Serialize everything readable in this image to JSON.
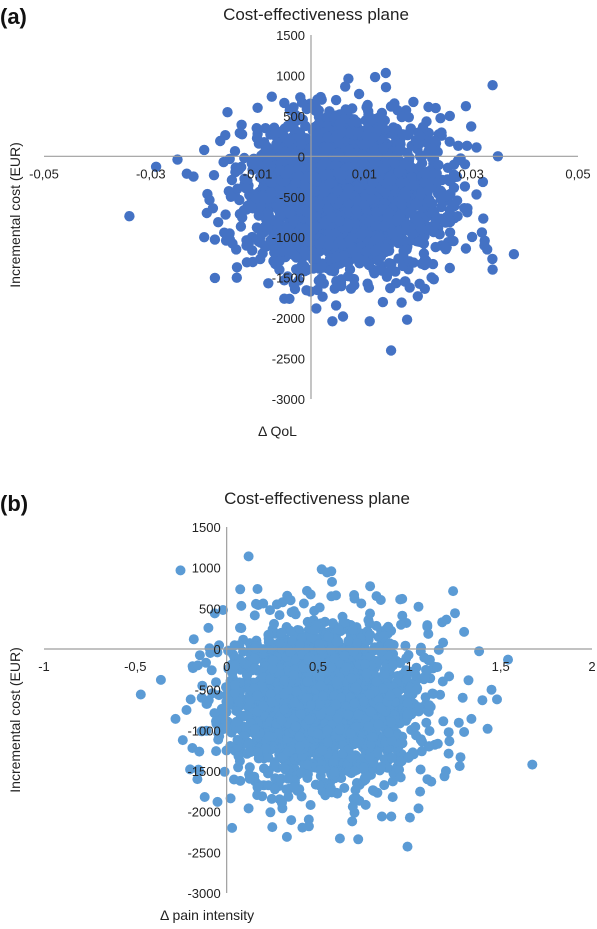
{
  "chart_data": [
    {
      "panel_label": "(a)",
      "type": "scatter",
      "title": "Cost-effectiveness plane",
      "xlabel": "Δ QoL",
      "ylabel": "Incremental cost (EUR)",
      "xlim": [
        -0.05,
        0.05
      ],
      "ylim": [
        -3000,
        1500
      ],
      "x_ticks": [
        "-0,05",
        "-0,03",
        "-0,01",
        "0,01",
        "0,03",
        "0,05"
      ],
      "x_tick_values": [
        -0.05,
        -0.03,
        -0.01,
        0.01,
        0.03,
        0.05
      ],
      "y_ticks": [
        "1500",
        "1000",
        "500",
        "0",
        "-500",
        "-1000",
        "-1500",
        "-2000",
        "-2500",
        "-3000"
      ],
      "y_tick_values": [
        1500,
        1000,
        500,
        0,
        -500,
        -1000,
        -1500,
        -2000,
        -2500,
        -3000
      ],
      "color": "#4472c4",
      "points": [
        [
          -0.034,
          -740
        ],
        [
          -0.029,
          -130
        ],
        [
          -0.025,
          -40
        ],
        [
          -0.022,
          -250
        ],
        [
          -0.019,
          -540
        ],
        [
          -0.016,
          -720
        ],
        [
          -0.015,
          -500
        ],
        [
          -0.02,
          -1000
        ],
        [
          -0.018,
          -1030
        ],
        [
          -0.014,
          -1150
        ],
        [
          -0.012,
          -1310
        ],
        [
          -0.008,
          -1570
        ],
        [
          -0.005,
          -1760
        ],
        [
          -0.003,
          -1640
        ],
        [
          0.001,
          -1880
        ],
        [
          0.004,
          -2040
        ],
        [
          0.006,
          -1980
        ],
        [
          0.011,
          -2040
        ],
        [
          0.015,
          -2400
        ],
        [
          0.018,
          -2020
        ],
        [
          0.02,
          -1730
        ],
        [
          0.023,
          -1520
        ],
        [
          0.026,
          -1380
        ],
        [
          0.029,
          -1140
        ],
        [
          0.032,
          -940
        ],
        [
          0.031,
          -470
        ],
        [
          0.033,
          -1150
        ],
        [
          0.034,
          -1400
        ],
        [
          0.038,
          -1210
        ],
        [
          0.035,
          0
        ],
        [
          0.031,
          110
        ],
        [
          0.029,
          620
        ],
        [
          0.034,
          880
        ],
        [
          0.03,
          370
        ],
        [
          0.026,
          500
        ],
        [
          0.022,
          610
        ],
        [
          0.014,
          1030
        ],
        [
          0.012,
          980
        ],
        [
          0.007,
          960
        ],
        [
          0.002,
          700
        ],
        [
          -0.002,
          730
        ],
        [
          -0.005,
          660
        ],
        [
          -0.01,
          600
        ],
        [
          -0.013,
          390
        ],
        [
          -0.017,
          190
        ],
        [
          -0.02,
          80
        ],
        [
          0.009,
          770
        ],
        [
          -0.006,
          300
        ],
        [
          0.0,
          100
        ],
        [
          0.005,
          -200
        ],
        [
          0.01,
          -600
        ],
        [
          0.015,
          -300
        ],
        [
          0.02,
          -800
        ]
      ]
    },
    {
      "panel_label": "(b)",
      "type": "scatter",
      "title": "Cost-effectiveness plane",
      "xlabel": "Δ pain intensity",
      "ylabel": "Incremental cost (EUR)",
      "xlim": [
        -1,
        2
      ],
      "ylim": [
        -3000,
        1500
      ],
      "x_ticks": [
        "-1",
        "-0,5",
        "0",
        "0,5",
        "1",
        "1,5",
        "2"
      ],
      "x_tick_values": [
        -1,
        -0.5,
        0,
        0.5,
        1,
        1.5,
        2
      ],
      "y_ticks": [
        "1500",
        "1000",
        "500",
        "0",
        "-500",
        "-1000",
        "-1500",
        "-2000",
        "-2500",
        "-3000"
      ],
      "y_tick_values": [
        1500,
        1000,
        500,
        0,
        -500,
        -1000,
        -1500,
        -2000,
        -2500,
        -3000
      ],
      "color": "#5b9bd5",
      "points": [
        [
          -0.47,
          -560
        ],
        [
          -0.36,
          -380
        ],
        [
          -0.28,
          -860
        ],
        [
          -0.24,
          -1120
        ],
        [
          -0.2,
          -1480
        ],
        [
          -0.16,
          -1600
        ],
        [
          -0.22,
          -750
        ],
        [
          -0.12,
          -1820
        ],
        [
          -0.05,
          -1880
        ],
        [
          0.03,
          -2200
        ],
        [
          0.12,
          -1960
        ],
        [
          0.25,
          -2190
        ],
        [
          0.33,
          -2310
        ],
        [
          0.45,
          -2180
        ],
        [
          0.62,
          -2330
        ],
        [
          0.72,
          -2340
        ],
        [
          0.85,
          -2060
        ],
        [
          0.99,
          -2430
        ],
        [
          1.05,
          -1960
        ],
        [
          1.12,
          -1630
        ],
        [
          1.2,
          -1500
        ],
        [
          1.28,
          -1330
        ],
        [
          1.3,
          -1020
        ],
        [
          1.34,
          -860
        ],
        [
          1.4,
          -630
        ],
        [
          1.45,
          -500
        ],
        [
          1.54,
          -130
        ],
        [
          1.48,
          -620
        ],
        [
          1.3,
          210
        ],
        [
          1.25,
          440
        ],
        [
          1.18,
          330
        ],
        [
          1.05,
          520
        ],
        [
          0.95,
          610
        ],
        [
          0.82,
          650
        ],
        [
          0.7,
          620
        ],
        [
          0.52,
          980
        ],
        [
          0.55,
          940
        ],
        [
          0.46,
          670
        ],
        [
          0.35,
          600
        ],
        [
          0.2,
          560
        ],
        [
          0.08,
          530
        ],
        [
          -0.02,
          480
        ],
        [
          -0.1,
          260
        ],
        [
          -0.18,
          120
        ],
        [
          0.3,
          200
        ],
        [
          0.6,
          -400
        ],
        [
          0.9,
          -900
        ],
        [
          0.4,
          -1200
        ],
        [
          0.7,
          -1500
        ],
        [
          0.2,
          -700
        ]
      ]
    }
  ]
}
